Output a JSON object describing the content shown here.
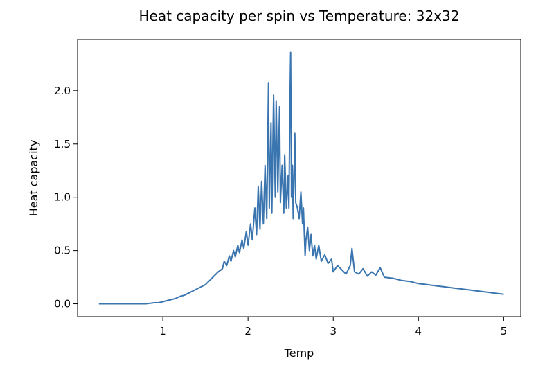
{
  "chart_data": {
    "type": "line",
    "title": "Heat capacity per spin vs Temperature: 32x32",
    "xlabel": "Temp",
    "ylabel": "Heat capacity",
    "xlim": [
      0.0,
      5.2
    ],
    "ylim": [
      -0.12,
      2.48
    ],
    "x_ticks": [
      1,
      2,
      3,
      4,
      5
    ],
    "x_tick_labels": [
      "1",
      "2",
      "3",
      "4",
      "5"
    ],
    "y_ticks": [
      0.0,
      0.5,
      1.0,
      1.5,
      2.0
    ],
    "y_tick_labels": [
      "0.0",
      "0.5",
      "1.0",
      "1.5",
      "2.0"
    ],
    "grid": false,
    "series": [
      {
        "color": "#3a75b0",
        "x": [
          0.25,
          0.4,
          0.5,
          0.6,
          0.7,
          0.8,
          0.9,
          0.95,
          1.0,
          1.05,
          1.1,
          1.15,
          1.2,
          1.25,
          1.3,
          1.35,
          1.4,
          1.45,
          1.5,
          1.55,
          1.6,
          1.65,
          1.7,
          1.72,
          1.75,
          1.78,
          1.8,
          1.83,
          1.85,
          1.88,
          1.9,
          1.93,
          1.95,
          1.98,
          2.0,
          2.03,
          2.05,
          2.08,
          2.1,
          2.12,
          2.14,
          2.16,
          2.18,
          2.2,
          2.22,
          2.24,
          2.25,
          2.27,
          2.28,
          2.3,
          2.32,
          2.33,
          2.35,
          2.37,
          2.38,
          2.4,
          2.42,
          2.43,
          2.45,
          2.47,
          2.48,
          2.49,
          2.5,
          2.51,
          2.52,
          2.53,
          2.55,
          2.56,
          2.58,
          2.6,
          2.62,
          2.64,
          2.65,
          2.67,
          2.68,
          2.7,
          2.72,
          2.74,
          2.76,
          2.78,
          2.8,
          2.83,
          2.86,
          2.9,
          2.94,
          2.98,
          3.0,
          3.05,
          3.1,
          3.15,
          3.2,
          3.22,
          3.25,
          3.3,
          3.35,
          3.4,
          3.45,
          3.5,
          3.55,
          3.6,
          3.7,
          3.8,
          3.9,
          4.0,
          4.1,
          4.2,
          4.3,
          4.4,
          4.5,
          4.6,
          4.7,
          4.8,
          4.9,
          5.0
        ],
        "y": [
          0.0,
          0.0,
          0.0,
          0.0,
          0.0,
          0.0,
          0.01,
          0.01,
          0.02,
          0.03,
          0.04,
          0.05,
          0.07,
          0.08,
          0.1,
          0.12,
          0.14,
          0.16,
          0.18,
          0.22,
          0.26,
          0.3,
          0.33,
          0.4,
          0.36,
          0.45,
          0.4,
          0.5,
          0.44,
          0.55,
          0.48,
          0.6,
          0.52,
          0.68,
          0.55,
          0.75,
          0.6,
          0.9,
          0.65,
          1.1,
          0.7,
          1.15,
          0.75,
          1.3,
          0.8,
          2.07,
          0.9,
          1.7,
          0.85,
          1.96,
          1.0,
          1.9,
          1.05,
          1.85,
          0.95,
          1.3,
          0.85,
          1.4,
          0.9,
          1.2,
          0.9,
          1.8,
          2.36,
          1.0,
          1.3,
          0.8,
          1.6,
          0.95,
          0.9,
          0.8,
          1.05,
          0.75,
          0.9,
          0.45,
          0.6,
          0.72,
          0.5,
          0.65,
          0.45,
          0.55,
          0.42,
          0.55,
          0.4,
          0.46,
          0.38,
          0.42,
          0.3,
          0.36,
          0.32,
          0.28,
          0.36,
          0.52,
          0.3,
          0.28,
          0.33,
          0.26,
          0.3,
          0.27,
          0.34,
          0.25,
          0.24,
          0.22,
          0.21,
          0.19,
          0.18,
          0.17,
          0.16,
          0.15,
          0.14,
          0.13,
          0.12,
          0.11,
          0.1,
          0.09
        ]
      }
    ]
  }
}
